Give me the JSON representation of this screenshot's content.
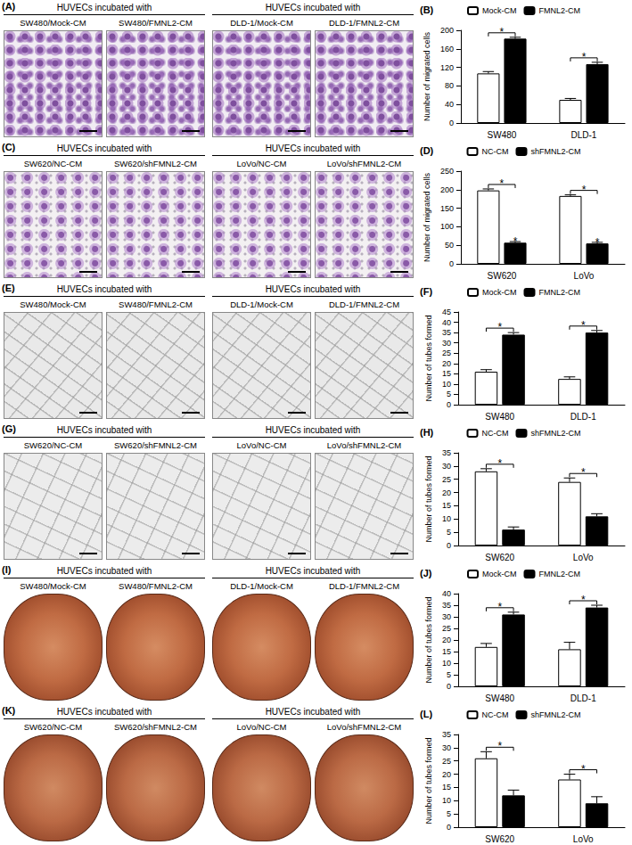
{
  "image_panels": [
    {
      "panel": "(A)",
      "scale_bar": true,
      "groups": [
        {
          "header": "HUVECs incubated with",
          "labels": [
            "SW480/Mock-CM",
            "SW480/FMNL2-CM"
          ]
        },
        {
          "header": "HUVECs incubated with",
          "labels": [
            "DLD-1/Mock-CM",
            "DLD-1/FMNL2-CM"
          ]
        }
      ]
    },
    {
      "panel": "(C)",
      "scale_bar": true,
      "groups": [
        {
          "header": "HUVECs incubated with",
          "labels": [
            "SW620/NC-CM",
            "SW620/shFMNL2-CM"
          ]
        },
        {
          "header": "HUVECs incubated with",
          "labels": [
            "LoVo/NC-CM",
            "LoVo/shFMNL2-CM"
          ]
        }
      ]
    },
    {
      "panel": "(E)",
      "scale_bar": true,
      "groups": [
        {
          "header": "HUVECs incubated with",
          "labels": [
            "SW480/Mock-CM",
            "SW480/FMNL2-CM"
          ]
        },
        {
          "header": "HUVECs incubated with",
          "labels": [
            "DLD-1/Mock-CM",
            "DLD-1/FMNL2-CM"
          ]
        }
      ]
    },
    {
      "panel": "(G)",
      "scale_bar": true,
      "groups": [
        {
          "header": "HUVECs incubated with",
          "labels": [
            "SW620/NC-CM",
            "SW620/shFMNL2-CM"
          ]
        },
        {
          "header": "HUVECs incubated with",
          "labels": [
            "LoVo/NC-CM",
            "LoVo/shFMNL2-CM"
          ]
        }
      ]
    },
    {
      "panel": "(I)",
      "scale_bar": false,
      "groups": [
        {
          "header": "HUVECs incubated with",
          "labels": [
            "SW480/Mock-CM",
            "SW480/FMNL2-CM"
          ]
        },
        {
          "header": "HUVECs incubated with",
          "labels": [
            "DLD-1/Mock-CM",
            "DLD-1/FMNL2-CM"
          ]
        }
      ]
    },
    {
      "panel": "(K)",
      "scale_bar": false,
      "groups": [
        {
          "header": "HUVECs incubated with",
          "labels": [
            "SW620/NC-CM",
            "SW620/shFMNL2-CM"
          ]
        },
        {
          "header": "HUVECs incubated with",
          "labels": [
            "LoVo/NC-CM",
            "LoVo/shFMNL2-CM"
          ]
        }
      ]
    }
  ],
  "chart_data": [
    {
      "type": "bar",
      "title": "(B)",
      "categories": [
        "SW480",
        "DLD-1"
      ],
      "series": [
        {
          "name": "Mock-CM",
          "color": "#ffffff",
          "values": [
            107,
            50
          ],
          "errors": [
            4,
            3
          ]
        },
        {
          "name": "FMNL2-CM",
          "color": "#000000",
          "values": [
            182,
            127
          ],
          "errors": [
            3,
            4
          ]
        }
      ],
      "ylabel": "Number of migrated cells",
      "ylim": [
        0,
        200
      ],
      "yticks": [
        0,
        40,
        80,
        120,
        160,
        200
      ],
      "grid": false,
      "legend": "top",
      "annotations": [
        {
          "text": "*",
          "category": "SW480"
        },
        {
          "text": "*",
          "category": "DLD-1"
        }
      ]
    },
    {
      "type": "bar",
      "title": "(D)",
      "categories": [
        "SW620",
        "LoVo"
      ],
      "series": [
        {
          "name": "NC-CM",
          "color": "#ffffff",
          "values": [
            198,
            183
          ],
          "errors": [
            4,
            3
          ]
        },
        {
          "name": "shFMNL2-CM",
          "color": "#000000",
          "values": [
            57,
            55
          ],
          "errors": [
            3,
            3
          ]
        }
      ],
      "ylabel": "Number of migrated cells",
      "ylim": [
        0,
        250
      ],
      "yticks": [
        0,
        50,
        100,
        150,
        200,
        250
      ],
      "grid": false,
      "legend": "top",
      "annotations": [
        {
          "text": "*",
          "category": "SW620"
        },
        {
          "text": "*",
          "category": "LoVo"
        },
        {
          "text": "*",
          "category": "SW620",
          "series": "shFMNL2-CM"
        },
        {
          "text": "*",
          "category": "LoVo",
          "series": "shFMNL2-CM"
        }
      ]
    },
    {
      "type": "bar",
      "title": "(F)",
      "categories": [
        "SW480",
        "DLD-1"
      ],
      "series": [
        {
          "name": "Mock-CM",
          "color": "#ffffff",
          "values": [
            16,
            12.5
          ],
          "errors": [
            1,
            1
          ]
        },
        {
          "name": "FMNL2-CM",
          "color": "#000000",
          "values": [
            34,
            35
          ],
          "errors": [
            1,
            1
          ]
        }
      ],
      "ylabel": "Number of tubes formed",
      "ylim": [
        0,
        45
      ],
      "yticks": [
        0,
        5,
        10,
        15,
        20,
        25,
        30,
        35,
        40,
        45
      ],
      "grid": false,
      "legend": "top",
      "annotations": [
        {
          "text": "*",
          "category": "SW480"
        },
        {
          "text": "*",
          "category": "DLD-1"
        }
      ]
    },
    {
      "type": "bar",
      "title": "(H)",
      "categories": [
        "SW620",
        "LoVo"
      ],
      "series": [
        {
          "name": "NC-CM",
          "color": "#ffffff",
          "values": [
            28,
            24
          ],
          "errors": [
            1,
            1.5
          ]
        },
        {
          "name": "shFMNL2-CM",
          "color": "#000000",
          "values": [
            6,
            11
          ],
          "errors": [
            1,
            1
          ]
        }
      ],
      "ylabel": "Number of tubes formed",
      "ylim": [
        0,
        35
      ],
      "yticks": [
        0,
        5,
        10,
        15,
        20,
        25,
        30,
        35
      ],
      "grid": false,
      "legend": "top",
      "annotations": [
        {
          "text": "*",
          "category": "SW620"
        },
        {
          "text": "*",
          "category": "LoVo"
        }
      ]
    },
    {
      "type": "bar",
      "title": "(J)",
      "categories": [
        "SW480",
        "DLD-1"
      ],
      "series": [
        {
          "name": "Mock-CM",
          "color": "#ffffff",
          "values": [
            17,
            16
          ],
          "errors": [
            1.5,
            3
          ]
        },
        {
          "name": "FMNL2-CM",
          "color": "#000000",
          "values": [
            31,
            34
          ],
          "errors": [
            1,
            1
          ]
        }
      ],
      "ylabel": "Number of tubes formed",
      "ylim": [
        0,
        40
      ],
      "yticks": [
        0,
        5,
        10,
        15,
        20,
        25,
        30,
        35,
        40
      ],
      "grid": false,
      "legend": "top",
      "annotations": [
        {
          "text": "*",
          "category": "SW480"
        },
        {
          "text": "*",
          "category": "DLD-1"
        }
      ]
    },
    {
      "type": "bar",
      "title": "(L)",
      "categories": [
        "SW620",
        "LoVo"
      ],
      "series": [
        {
          "name": "NC-CM",
          "color": "#ffffff",
          "values": [
            26,
            18
          ],
          "errors": [
            2.5,
            2
          ]
        },
        {
          "name": "shFMNL2-CM",
          "color": "#000000",
          "values": [
            12,
            9
          ],
          "errors": [
            2,
            2.5
          ]
        }
      ],
      "ylabel": "Number of tubes formed",
      "ylim": [
        0,
        35
      ],
      "yticks": [
        0,
        5,
        10,
        15,
        20,
        25,
        30,
        35
      ],
      "grid": false,
      "legend": "top",
      "annotations": [
        {
          "text": "*",
          "category": "SW620"
        },
        {
          "text": "*",
          "category": "LoVo"
        }
      ]
    }
  ]
}
